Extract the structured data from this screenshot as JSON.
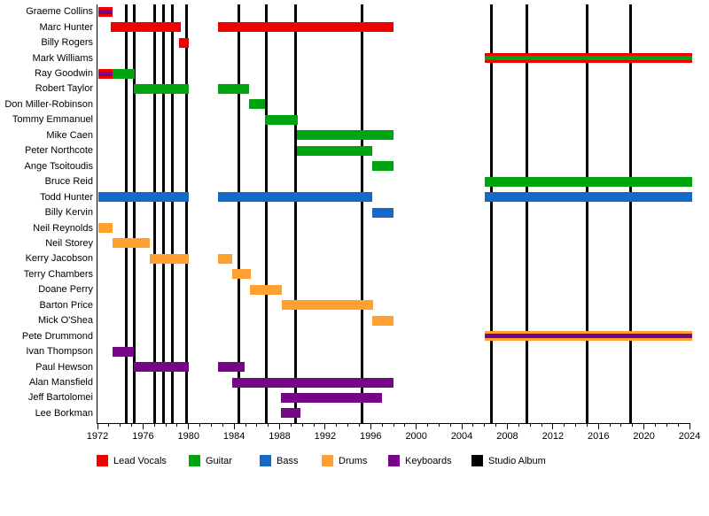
{
  "chart_data": {
    "type": "timeline",
    "description_of_visual": "Horizontal band-membership timeline; one row per member, colored bars for tenure by role, black vertical lines mark studio albums",
    "x_axis": {
      "min": 1972,
      "max": 2024,
      "major_tick_step": 4,
      "minor_tick_step": 1,
      "tick_labels": [
        "1972",
        "1976",
        "1980",
        "1984",
        "1988",
        "1992",
        "1996",
        "2000",
        "2004",
        "2008",
        "2012",
        "2016",
        "2020",
        "2024"
      ]
    },
    "legend": [
      {
        "role": "lead_vocals",
        "label": "Lead Vocals",
        "color": "#f10000"
      },
      {
        "role": "guitar",
        "label": "Guitar",
        "color": "#00a410"
      },
      {
        "role": "bass",
        "label": "Bass",
        "color": "#1569c7"
      },
      {
        "role": "drums",
        "label": "Drums",
        "color": "#ffa030"
      },
      {
        "role": "keyboards",
        "label": "Keyboards",
        "color": "#750787"
      },
      {
        "role": "studio_album",
        "label": "Studio Album",
        "color": "#000000"
      }
    ],
    "studio_album_years": [
      1974.5,
      1975.2,
      1977.0,
      1977.8,
      1978.6,
      1979.8,
      1984.4,
      1986.8,
      1989.4,
      1995.2,
      2006.6,
      2009.7,
      2015.0,
      2018.8
    ],
    "members": [
      {
        "name": "Graeme Collins",
        "segments": [
          {
            "start": 1972.1,
            "end": 1973.3,
            "roles": [
              "lead_vocals",
              "keyboards"
            ]
          }
        ]
      },
      {
        "name": "Marc Hunter",
        "segments": [
          {
            "start": 1973.2,
            "end": 1979.3,
            "roles": [
              "lead_vocals"
            ]
          },
          {
            "start": 1982.6,
            "end": 1998.0,
            "roles": [
              "lead_vocals"
            ]
          }
        ]
      },
      {
        "name": "Billy Rogers",
        "segments": [
          {
            "start": 1979.2,
            "end": 1980.0,
            "roles": [
              "lead_vocals"
            ]
          }
        ]
      },
      {
        "name": "Mark Williams",
        "segments": [
          {
            "start": 2006.0,
            "end": 2024.2,
            "roles": [
              "lead_vocals",
              "guitar"
            ]
          }
        ]
      },
      {
        "name": "Ray Goodwin",
        "segments": [
          {
            "start": 1972.1,
            "end": 1973.3,
            "roles": [
              "lead_vocals",
              "keyboards"
            ]
          },
          {
            "start": 1973.3,
            "end": 1975.3,
            "roles": [
              "guitar"
            ]
          }
        ]
      },
      {
        "name": "Robert Taylor",
        "segments": [
          {
            "start": 1975.2,
            "end": 1980.0,
            "roles": [
              "guitar"
            ]
          },
          {
            "start": 1982.6,
            "end": 1985.3,
            "roles": [
              "guitar"
            ]
          }
        ]
      },
      {
        "name": "Don Miller-Robinson",
        "segments": [
          {
            "start": 1985.3,
            "end": 1986.7,
            "roles": [
              "guitar"
            ]
          }
        ]
      },
      {
        "name": "Tommy Emmanuel",
        "segments": [
          {
            "start": 1986.7,
            "end": 1989.6,
            "roles": [
              "guitar"
            ]
          }
        ]
      },
      {
        "name": "Mike Caen",
        "segments": [
          {
            "start": 1989.5,
            "end": 1998.0,
            "roles": [
              "guitar"
            ]
          }
        ]
      },
      {
        "name": "Peter Northcote",
        "segments": [
          {
            "start": 1989.5,
            "end": 1996.1,
            "roles": [
              "guitar"
            ]
          }
        ]
      },
      {
        "name": "Ange Tsoitoudis",
        "segments": [
          {
            "start": 1996.1,
            "end": 1998.0,
            "roles": [
              "guitar"
            ]
          }
        ]
      },
      {
        "name": "Bruce Reid",
        "segments": [
          {
            "start": 2006.0,
            "end": 2024.2,
            "roles": [
              "guitar"
            ]
          }
        ]
      },
      {
        "name": "Todd Hunter",
        "segments": [
          {
            "start": 1972.1,
            "end": 1980.0,
            "roles": [
              "bass"
            ]
          },
          {
            "start": 1982.6,
            "end": 1996.1,
            "roles": [
              "bass"
            ]
          },
          {
            "start": 2006.0,
            "end": 2024.2,
            "roles": [
              "bass"
            ]
          }
        ]
      },
      {
        "name": "Billy Kervin",
        "segments": [
          {
            "start": 1996.1,
            "end": 1998.0,
            "roles": [
              "bass"
            ]
          }
        ]
      },
      {
        "name": "Neil Reynolds",
        "segments": [
          {
            "start": 1972.1,
            "end": 1973.3,
            "roles": [
              "drums"
            ]
          }
        ]
      },
      {
        "name": "Neil Storey",
        "segments": [
          {
            "start": 1973.3,
            "end": 1976.6,
            "roles": [
              "drums"
            ]
          }
        ]
      },
      {
        "name": "Kerry Jacobson",
        "segments": [
          {
            "start": 1976.6,
            "end": 1980.0,
            "roles": [
              "drums"
            ]
          },
          {
            "start": 1982.6,
            "end": 1983.8,
            "roles": [
              "drums"
            ]
          }
        ]
      },
      {
        "name": "Terry Chambers",
        "segments": [
          {
            "start": 1983.8,
            "end": 1985.5,
            "roles": [
              "drums"
            ]
          }
        ]
      },
      {
        "name": "Doane Perry",
        "segments": [
          {
            "start": 1985.4,
            "end": 1988.2,
            "roles": [
              "drums"
            ]
          }
        ]
      },
      {
        "name": "Barton Price",
        "segments": [
          {
            "start": 1988.2,
            "end": 1996.2,
            "roles": [
              "drums"
            ]
          }
        ]
      },
      {
        "name": "Mick O'Shea",
        "segments": [
          {
            "start": 1996.1,
            "end": 1998.0,
            "roles": [
              "drums"
            ]
          }
        ]
      },
      {
        "name": "Pete Drummond",
        "segments": [
          {
            "start": 2006.0,
            "end": 2024.2,
            "roles": [
              "drums",
              "keyboards"
            ]
          }
        ]
      },
      {
        "name": "Ivan Thompson",
        "segments": [
          {
            "start": 1973.3,
            "end": 1975.2,
            "roles": [
              "keyboards"
            ]
          }
        ]
      },
      {
        "name": "Paul Hewson",
        "segments": [
          {
            "start": 1975.2,
            "end": 1980.0,
            "roles": [
              "keyboards"
            ]
          },
          {
            "start": 1982.6,
            "end": 1984.9,
            "roles": [
              "keyboards"
            ]
          }
        ]
      },
      {
        "name": "Alan Mansfield",
        "segments": [
          {
            "start": 1983.8,
            "end": 1998.0,
            "roles": [
              "keyboards"
            ]
          }
        ]
      },
      {
        "name": "Jeff Bartolomei",
        "segments": [
          {
            "start": 1988.1,
            "end": 1997.0,
            "roles": [
              "keyboards"
            ]
          }
        ]
      },
      {
        "name": "Lee Borkman",
        "segments": [
          {
            "start": 1988.1,
            "end": 1989.8,
            "roles": [
              "keyboards"
            ]
          }
        ]
      }
    ]
  }
}
